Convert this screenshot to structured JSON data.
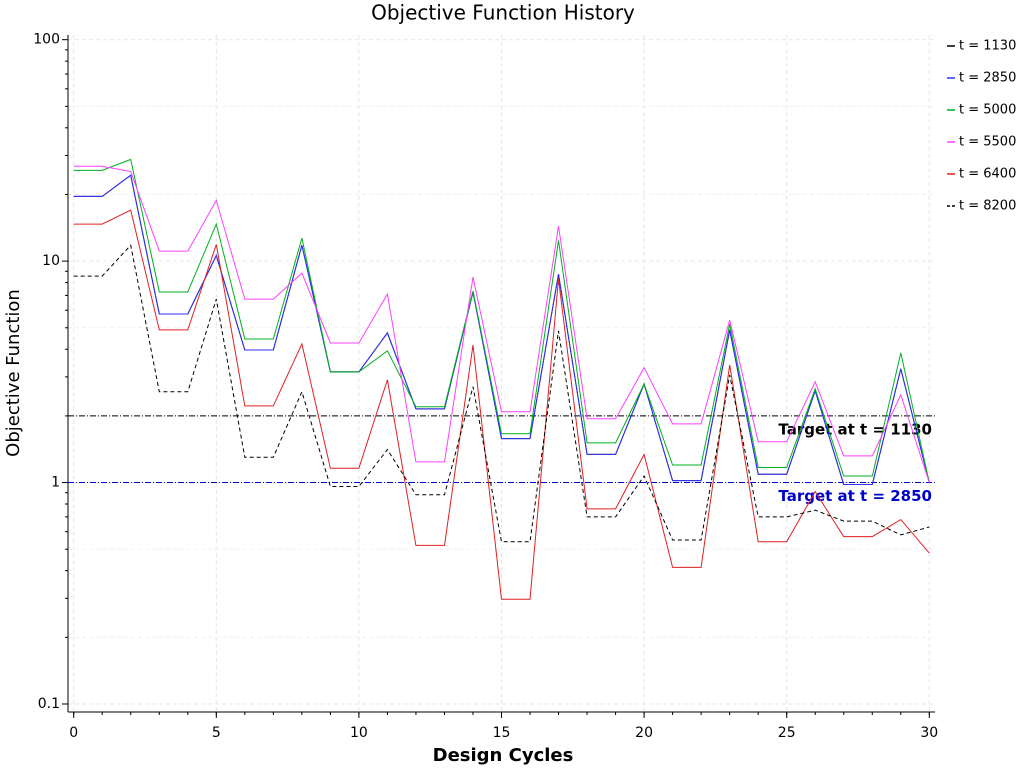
{
  "chart_data": {
    "type": "line",
    "title": "Objective Function History",
    "x_label": "Design Cycles",
    "y_label": "Objective Function",
    "x": [
      0,
      1,
      2,
      3,
      4,
      5,
      6,
      7,
      8,
      9,
      10,
      11,
      12,
      13,
      14,
      15,
      16,
      17,
      18,
      19,
      20,
      21,
      22,
      23,
      24,
      25,
      26,
      27,
      28,
      29,
      30
    ],
    "xlim": [
      -0.2,
      30.2
    ],
    "xticks": [
      0,
      5,
      10,
      15,
      20,
      25,
      30
    ],
    "ylim": [
      0.092,
      105
    ],
    "yticks": [
      0.1,
      1,
      10,
      100
    ],
    "log_y": true,
    "grid": true,
    "legend": "right",
    "series": [
      {
        "name": "t = 1130",
        "color": "#000000",
        "dashed": false,
        "values": [
          19.6,
          19.6,
          24.4,
          5.77,
          5.77,
          10.6,
          3.97,
          3.97,
          11.8,
          3.16,
          3.16,
          4.74,
          2.15,
          2.15,
          7.25,
          1.58,
          1.58,
          8.74,
          1.34,
          1.34,
          2.79,
          1.02,
          1.02,
          4.89,
          1.09,
          1.09,
          2.6,
          0.98,
          0.98,
          3.26,
          1.0
        ]
      },
      {
        "name": "t = 2850",
        "color": "#3030ff",
        "dashed": false,
        "values": [
          19.6,
          19.6,
          24.4,
          5.77,
          5.77,
          10.6,
          3.97,
          3.97,
          11.8,
          3.16,
          3.16,
          4.74,
          2.15,
          2.15,
          7.25,
          1.58,
          1.58,
          8.74,
          1.34,
          1.34,
          2.79,
          1.02,
          1.02,
          4.89,
          1.09,
          1.09,
          2.6,
          0.98,
          0.98,
          3.26,
          1.0
        ]
      },
      {
        "name": "t = 5000",
        "color": "#00b020",
        "dashed": false,
        "values": [
          25.7,
          25.7,
          28.8,
          7.25,
          7.25,
          14.7,
          4.45,
          4.45,
          12.7,
          3.16,
          3.16,
          3.93,
          2.2,
          2.2,
          7.33,
          1.66,
          1.66,
          12.4,
          1.51,
          1.51,
          2.79,
          1.2,
          1.2,
          5.2,
          1.17,
          1.17,
          2.65,
          1.07,
          1.07,
          3.85,
          1.0
        ]
      },
      {
        "name": "t = 5500",
        "color": "#ff40ff",
        "dashed": false,
        "values": [
          26.8,
          26.8,
          25.4,
          11.1,
          11.1,
          18.8,
          6.74,
          6.74,
          8.83,
          4.27,
          4.27,
          7.1,
          1.24,
          1.24,
          8.47,
          2.09,
          2.09,
          14.4,
          1.94,
          1.94,
          3.3,
          1.84,
          1.84,
          5.42,
          1.53,
          1.53,
          2.85,
          1.32,
          1.32,
          2.49,
          1.0
        ]
      },
      {
        "name": "t = 6400",
        "color": "#e02020",
        "dashed": false,
        "values": [
          14.7,
          14.7,
          17.0,
          4.89,
          4.89,
          11.9,
          2.22,
          2.22,
          4.23,
          1.16,
          1.16,
          2.91,
          0.52,
          0.52,
          4.18,
          0.297,
          0.297,
          8.3,
          0.76,
          0.76,
          1.34,
          0.414,
          0.414,
          3.4,
          0.54,
          0.54,
          0.91,
          0.57,
          0.57,
          0.68,
          0.48
        ]
      },
      {
        "name": "t = 8200",
        "color": "#000000",
        "dashed": true,
        "values": [
          8.56,
          8.56,
          11.8,
          2.57,
          2.57,
          6.74,
          1.3,
          1.3,
          2.57,
          0.96,
          0.96,
          1.41,
          0.88,
          0.88,
          2.71,
          0.54,
          0.54,
          4.84,
          0.7,
          0.7,
          1.07,
          0.55,
          0.55,
          3.06,
          0.7,
          0.7,
          0.75,
          0.67,
          0.67,
          0.58,
          0.63
        ]
      }
    ],
    "reference_lines": [
      {
        "y": 2,
        "color": "#000000",
        "label": "Target at t = 1130"
      },
      {
        "y": 1,
        "color": "#0000cc",
        "label": "Target at t = 2850"
      }
    ]
  }
}
